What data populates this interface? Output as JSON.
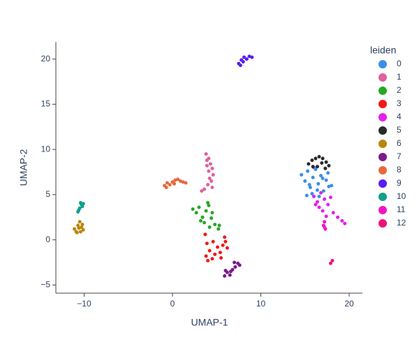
{
  "chart_data": {
    "type": "scatter",
    "xlabel": "UMAP-1",
    "ylabel": "UMAP-2",
    "legend_title": "leiden",
    "xlim": [
      -13.2,
      21.5
    ],
    "ylim": [
      -5.9,
      21.9
    ],
    "xticks": [
      {
        "value": -10,
        "label": "−10"
      },
      0,
      10,
      20
    ],
    "yticks": [
      {
        "value": -5,
        "label": "−5"
      },
      0,
      5,
      10,
      15,
      20
    ],
    "grid": false,
    "legend": "right",
    "series": [
      {
        "name": "0",
        "color": "#3b8ee6",
        "x": [
          14.6,
          15.0,
          15.3,
          15.6,
          15.9,
          16.2,
          16.5,
          16.8,
          17.1,
          17.4,
          17.7,
          18.0,
          15.2,
          15.8,
          16.4,
          17.0,
          17.6,
          16.0,
          16.6,
          15.5
        ],
        "y": [
          7.2,
          6.5,
          7.6,
          5.8,
          6.9,
          7.8,
          6.2,
          7.1,
          5.4,
          6.6,
          5.9,
          6.0,
          4.9,
          5.1,
          5.5,
          6.8,
          7.4,
          8.0,
          4.8,
          6.1
        ]
      },
      {
        "name": "1",
        "color": "#e0609e",
        "x": [
          3.8,
          3.9,
          4.1,
          4.3,
          4.5,
          4.6,
          4.2,
          4.0,
          3.6,
          3.3,
          4.4,
          4.1,
          3.9,
          4.5
        ],
        "y": [
          9.5,
          8.8,
          9.0,
          8.4,
          7.9,
          7.2,
          6.8,
          6.1,
          5.6,
          5.4,
          6.5,
          7.6,
          8.2,
          5.8
        ]
      },
      {
        "name": "2",
        "color": "#25a825",
        "x": [
          2.3,
          2.7,
          3.0,
          3.4,
          3.8,
          4.1,
          4.4,
          4.8,
          5.2,
          5.3,
          3.6,
          4.0,
          4.5,
          4.2,
          3.2
        ],
        "y": [
          3.4,
          3.0,
          3.6,
          2.5,
          3.2,
          3.8,
          2.4,
          1.7,
          1.2,
          1.6,
          1.9,
          4.1,
          3.0,
          1.4,
          2.1
        ]
      },
      {
        "name": "3",
        "color": "#f21818",
        "x": [
          3.7,
          3.9,
          4.2,
          4.5,
          4.8,
          5.1,
          5.4,
          5.7,
          6.0,
          6.2,
          4.0,
          3.8,
          4.6,
          5.5,
          5.9
        ],
        "y": [
          0.6,
          -0.4,
          -1.2,
          -2.1,
          -1.6,
          -0.8,
          -1.4,
          -0.6,
          -0.2,
          -0.9,
          -2.3,
          -1.8,
          -0.2,
          -2.0,
          0.3
        ]
      },
      {
        "name": "4",
        "color": "#e51ef0",
        "x": [
          16.0,
          16.4,
          16.8,
          17.2,
          17.6,
          17.9,
          16.6,
          17.0,
          17.4,
          18.2,
          18.7,
          19.2,
          19.5,
          17.2,
          16.2
        ],
        "y": [
          4.8,
          4.2,
          5.2,
          4.5,
          3.9,
          4.7,
          3.6,
          3.2,
          2.6,
          3.0,
          2.5,
          2.1,
          1.8,
          1.4,
          3.9
        ]
      },
      {
        "name": "5",
        "color": "#2a2a2a",
        "x": [
          15.4,
          15.8,
          16.2,
          16.6,
          17.0,
          17.4,
          17.7,
          16.4,
          16.9,
          17.3,
          15.9
        ],
        "y": [
          8.4,
          8.8,
          9.0,
          9.2,
          9.0,
          8.6,
          8.2,
          8.1,
          8.5,
          7.9,
          8.1
        ]
      },
      {
        "name": "6",
        "color": "#b8860b",
        "x": [
          -11.1,
          -10.9,
          -10.7,
          -10.5,
          -10.3,
          -10.1,
          -10.8,
          -10.6,
          -10.4,
          -10.2
        ],
        "y": [
          1.2,
          0.9,
          1.6,
          2.0,
          1.4,
          1.1,
          0.8,
          1.3,
          0.9,
          1.7
        ]
      },
      {
        "name": "7",
        "color": "#7b1a8a",
        "x": [
          5.9,
          6.2,
          6.5,
          6.8,
          7.1,
          7.4,
          7.6,
          6.6,
          7.0,
          6.0
        ],
        "y": [
          -4.0,
          -3.6,
          -3.9,
          -3.3,
          -3.0,
          -2.6,
          -2.8,
          -3.5,
          -2.5,
          -3.4
        ]
      },
      {
        "name": "8",
        "color": "#e8683d",
        "x": [
          -0.9,
          -0.6,
          -0.3,
          0.0,
          0.3,
          0.6,
          0.9,
          1.2,
          1.5,
          -0.7,
          0.2
        ],
        "y": [
          6.0,
          6.3,
          6.1,
          6.4,
          6.6,
          6.7,
          6.5,
          6.4,
          6.3,
          5.8,
          6.2
        ]
      },
      {
        "name": "9",
        "color": "#5a1cf0",
        "x": [
          7.5,
          7.8,
          8.1,
          8.4,
          8.7,
          9.0,
          7.7,
          8.0
        ],
        "y": [
          19.5,
          19.9,
          20.2,
          20.0,
          20.3,
          20.2,
          19.3,
          19.7
        ]
      },
      {
        "name": "10",
        "color": "#0fa08a",
        "x": [
          -10.7,
          -10.5,
          -10.3,
          -10.2,
          -10.6,
          -10.4,
          -10.1
        ],
        "y": [
          3.1,
          3.5,
          3.9,
          3.7,
          3.3,
          4.1,
          4.0
        ]
      },
      {
        "name": "11",
        "color": "#f014c8",
        "x": [
          17.1,
          17.3,
          17.2
        ],
        "y": [
          1.6,
          1.2,
          2.0
        ]
      },
      {
        "name": "12",
        "color": "#f0117a",
        "x": [
          17.9,
          18.1
        ],
        "y": [
          -2.6,
          -2.3
        ]
      }
    ]
  }
}
